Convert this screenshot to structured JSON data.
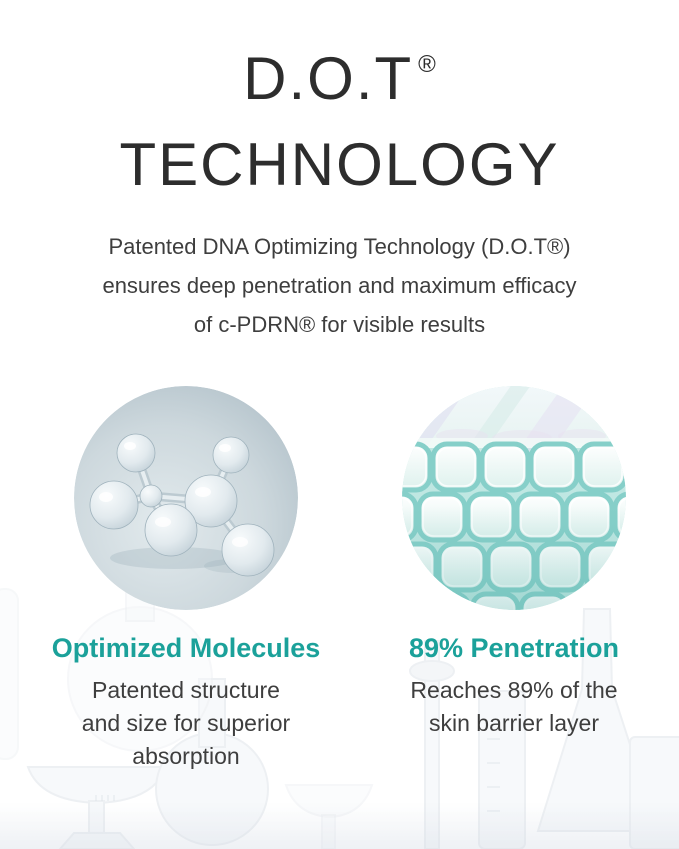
{
  "header": {
    "title_line1": "D.O.T",
    "title_reg": "®",
    "title_line2": "TECHNOLOGY",
    "subtitle_lines": [
      "Patented DNA Optimizing Technology (D.O.T®)",
      "ensures deep penetration and maximum efficacy",
      "of c-PDRN® for visible results"
    ]
  },
  "features": [
    {
      "image": "glass-molecule-3d-render",
      "caption": "Optimized Molecules",
      "description_lines": [
        "Patented structure",
        "and size for superior",
        "absorption"
      ]
    },
    {
      "image": "skin-barrier-cell-macro",
      "caption": "89% Penetration",
      "description_lines": [
        "Reaches 89% of the",
        "skin barrier layer"
      ]
    }
  ],
  "colors": {
    "accent_teal": "#1ba19a",
    "title_text": "#2d2d2d",
    "body_text": "#3e3e3e"
  },
  "background_decor": "faint-laboratory-glassware"
}
